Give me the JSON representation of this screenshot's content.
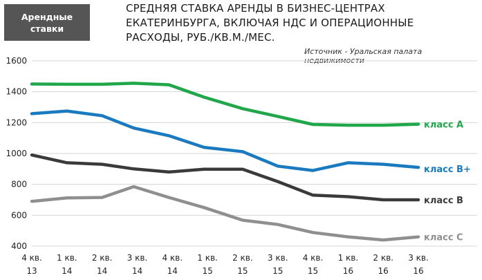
{
  "header": {
    "badge_line1": "Арендные",
    "badge_line2": "ставки",
    "title_line1": "СРЕДНЯЯ СТАВКА АРЕНДЫ В БИЗНЕС-ЦЕНТРАХ",
    "title_line2": "ЕКАТЕРИНБУРГА, ВКЛЮЧАЯ НДС И ОПЕРАЦИОННЫЕ",
    "title_line3": "РАСХОДЫ, РУБ./КВ.М./МЕС.",
    "source": "Источник - Уральская палата недвижимости"
  },
  "chart_data": {
    "type": "line",
    "categories": [
      [
        "4 кв.",
        "13"
      ],
      [
        "1 кв.",
        "14"
      ],
      [
        "2 кв.",
        "14"
      ],
      [
        "3 кв.",
        "14"
      ],
      [
        "4 кв.",
        "14"
      ],
      [
        "1 кв.",
        "15"
      ],
      [
        "2 кв.",
        "15"
      ],
      [
        "3 кв.",
        "15"
      ],
      [
        "4 кв.",
        "15"
      ],
      [
        "1 кв.",
        "16"
      ],
      [
        "2 кв.",
        "16"
      ],
      [
        "3 кв.",
        "16"
      ]
    ],
    "x": [
      0,
      1,
      2,
      3,
      4,
      5,
      6,
      7,
      8,
      9,
      10,
      11,
      12
    ],
    "ylim": [
      400,
      1600
    ],
    "yticks": [
      400,
      600,
      800,
      1000,
      1200,
      1400,
      1600
    ],
    "grid": "horizontal",
    "series": [
      {
        "name": "класс А",
        "color": "#1fa74a",
        "points": [
          [
            0,
            1450
          ],
          [
            1,
            1448
          ],
          [
            2,
            1448
          ],
          [
            2.9,
            1455
          ],
          [
            3.9,
            1445
          ],
          [
            4.9,
            1365
          ],
          [
            6,
            1290
          ],
          [
            7,
            1240
          ],
          [
            8,
            1188
          ],
          [
            9,
            1183
          ],
          [
            10,
            1183
          ],
          [
            11,
            1190
          ]
        ]
      },
      {
        "name": "класс В+",
        "color": "#1a7abf",
        "points": [
          [
            0,
            1258
          ],
          [
            1,
            1275
          ],
          [
            2,
            1245
          ],
          [
            2.9,
            1165
          ],
          [
            3.9,
            1115
          ],
          [
            4.9,
            1040
          ],
          [
            6,
            1012
          ],
          [
            7,
            918
          ],
          [
            8,
            890
          ],
          [
            9,
            940
          ],
          [
            10,
            930
          ],
          [
            11,
            910
          ]
        ]
      },
      {
        "name": "класс В",
        "color": "#3a3a3a",
        "points": [
          [
            0,
            990
          ],
          [
            1,
            940
          ],
          [
            2,
            930
          ],
          [
            2.9,
            900
          ],
          [
            3.9,
            880
          ],
          [
            4.9,
            898
          ],
          [
            6,
            898
          ],
          [
            7,
            818
          ],
          [
            8,
            730
          ],
          [
            9,
            720
          ],
          [
            10,
            700
          ],
          [
            11,
            700
          ]
        ]
      },
      {
        "name": "класс С",
        "color": "#8f8f8f",
        "points": [
          [
            0,
            690
          ],
          [
            1,
            712
          ],
          [
            2,
            715
          ],
          [
            2.9,
            785
          ],
          [
            3.9,
            715
          ],
          [
            4.9,
            650
          ],
          [
            6,
            568
          ],
          [
            7,
            540
          ],
          [
            8,
            488
          ],
          [
            9,
            460
          ],
          [
            10,
            440
          ],
          [
            11,
            460
          ]
        ]
      }
    ]
  }
}
